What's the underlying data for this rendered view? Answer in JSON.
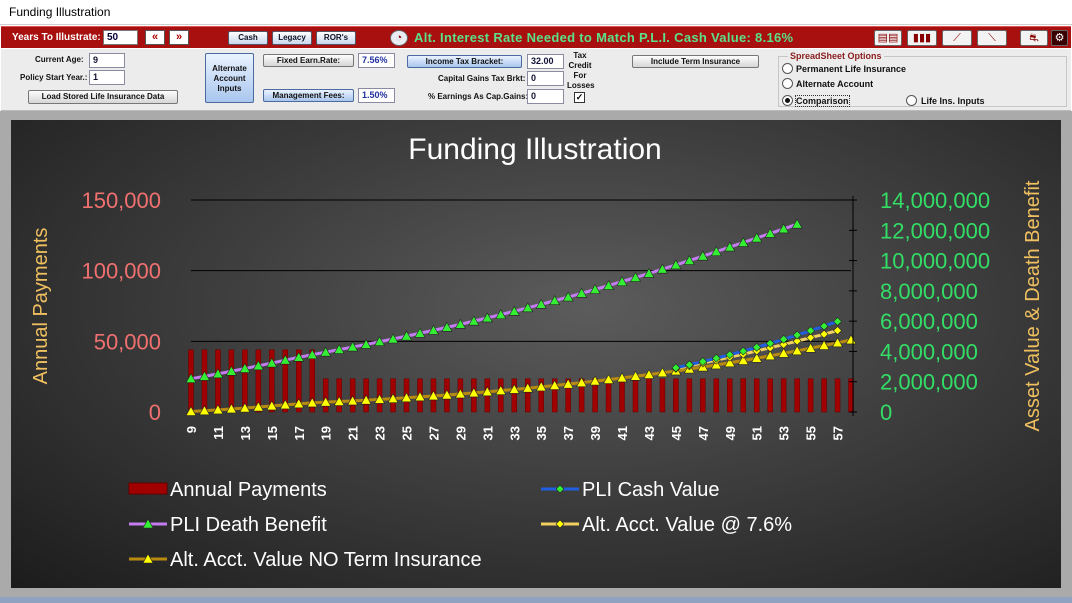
{
  "window": {
    "title": "Funding Illustration"
  },
  "toolbar": {
    "years_label": "Years To Illustrate:",
    "years_value": "50",
    "back_fast_label": "«",
    "fwd_fast_label": "»",
    "cash_label": "Cash",
    "legacy_label": "Legacy",
    "rors_label": "ROR's",
    "alt_rate_text": "Alt. Interest Rate Needed to Match P.L.I. Cash Value: 8.16%",
    "icons": [
      "gauge-icon",
      "table-icon",
      "bar-chart-icon",
      "line-chart-icon",
      "trend-chart-icon",
      "car-icon",
      "gear-icon"
    ],
    "accent": "#a80f0f",
    "alt_rate_color": "#5ce08a"
  },
  "panel": {
    "current_age_label": "Current Age:",
    "current_age_value": "9",
    "policy_start_label": "Policy Start Year.:",
    "policy_start_value": "1",
    "load_button_label": "Load Stored Life Insurance Data",
    "alt_account_button_label": "Alternate Account Inputs",
    "fixed_earn_label": "Fixed Earn.Rate:",
    "fixed_earn_value": "7.56%",
    "mgmt_fees_label": "Management Fees:",
    "mgmt_fees_value": "1.50%",
    "income_tax_label": "Income Tax Bracket:",
    "income_tax_value": "32.00",
    "cap_gains_label": "Capital Gains Tax Brkt:",
    "cap_gains_value": "0",
    "earnings_cap_label": "% Earnings As Cap.Gains:",
    "earnings_cap_value": "0",
    "tax_credit_label": "Tax Credit For Losses",
    "tax_credit_checked": "✓",
    "term_insurance_button_label": "Include Term Insurance",
    "spreadsheet_options": {
      "title": "SpreadSheet Options",
      "option_permanent": "Permanent Life Insurance",
      "option_alternate": "Alternate Account",
      "option_comparison": "Comparison",
      "option_life_inputs": "Life Ins. Inputs",
      "selected": "Comparison"
    }
  },
  "chart_data": {
    "type": "bar+line",
    "title": "Funding Illustration",
    "left_axis_label": "Annual Payments",
    "right_axis_label": "Asset Value & Death Benefit",
    "left_ylim": [
      0,
      150000
    ],
    "left_ticks": [
      "0",
      "50,000",
      "100,000",
      "150,000"
    ],
    "right_ylim": [
      0,
      14000000
    ],
    "right_ticks": [
      "0",
      "2,000,000",
      "4,000,000",
      "6,000,000",
      "8,000,000",
      "10,000,000",
      "12,000,000",
      "14,000,000"
    ],
    "x_ticks": [
      "9",
      "11",
      "13",
      "15",
      "17",
      "19",
      "21",
      "23",
      "25",
      "27",
      "29",
      "31",
      "33",
      "35",
      "37",
      "39",
      "41",
      "43",
      "45",
      "47",
      "49",
      "51",
      "53",
      "55",
      "57"
    ],
    "x_start_age": 9,
    "x_end_age": 58,
    "annual_payments": [
      44000,
      44000,
      44000,
      44000,
      44000,
      44000,
      44000,
      44000,
      44000,
      44000,
      23500,
      23500,
      23500,
      23500,
      23500,
      23500,
      23500,
      23500,
      23500,
      23500,
      23500,
      23500,
      23500,
      23500,
      23500,
      23500,
      23500,
      23500,
      23500,
      23500,
      23500,
      23500,
      23500,
      23500,
      23500,
      23500,
      23500,
      23500,
      23500,
      23500,
      23500,
      23500,
      23500,
      23500,
      23500,
      23500,
      23500,
      23500,
      23500,
      23500
    ],
    "pli_death_benefit": [
      2200000,
      2350000,
      2520000,
      2690000,
      2870000,
      3050000,
      3230000,
      3420000,
      3610000,
      3780000,
      3950000,
      4120000,
      4290000,
      4460000,
      4640000,
      4820000,
      5010000,
      5200000,
      5390000,
      5590000,
      5790000,
      6000000,
      6210000,
      6430000,
      6650000,
      6880000,
      7110000,
      7350000,
      7590000,
      7840000,
      8090000,
      8350000,
      8610000,
      8880000,
      9150000,
      9430000,
      9710000,
      10000000,
      10290000,
      10590000,
      10890000,
      11190000,
      11490000,
      11790000,
      12090000,
      12400000
    ],
    "pli_cash_value_start_age": 45,
    "pli_cash_value": [
      2920000,
      3120000,
      3330000,
      3550000,
      3780000,
      4020000,
      4270000,
      4530000,
      4800000,
      5080000,
      5370000,
      5670000,
      5980000
    ],
    "alt_acct_value_start_age": 45,
    "alt_acct_value": [
      2880000,
      3050000,
      3230000,
      3420000,
      3620000,
      3820000,
      4030000,
      4240000,
      4460000,
      4680000,
      4910000,
      5140000,
      5380000
    ],
    "alt_no_term": [
      30000,
      80000,
      140000,
      200000,
      260000,
      330000,
      400000,
      470000,
      540000,
      600000,
      650000,
      690000,
      730000,
      780000,
      830000,
      880000,
      940000,
      1000000,
      1060000,
      1120000,
      1190000,
      1260000,
      1330000,
      1410000,
      1490000,
      1570000,
      1660000,
      1750000,
      1840000,
      1940000,
      2040000,
      2140000,
      2250000,
      2360000,
      2470000,
      2590000,
      2710000,
      2840000,
      2970000,
      3110000,
      3250000,
      3400000,
      3550000,
      3710000,
      3870000,
      4040000,
      4210000,
      4390000,
      4570000,
      4760000
    ],
    "legend": [
      "Annual Payments",
      "PLI Cash Value",
      "PLI Death Benefit",
      "Alt. Acct. Value @ 7.6%",
      "Alt. Acct. Value  NO Term Insurance"
    ],
    "colors": {
      "bars": "#a00000",
      "cash_value_line": "#1f5fe0",
      "cash_value_marker": "#33ee33",
      "death_line": "#c27cf0",
      "death_marker": "#33ee33",
      "alt_line": "#f0d060",
      "alt_marker": "#ffff00",
      "no_term_line": "#b88a10",
      "no_term_marker": "#ffff00",
      "left_axis_text": "#f07070",
      "right_axis_text": "#33dd66",
      "axis_title": "#f0c060"
    }
  }
}
